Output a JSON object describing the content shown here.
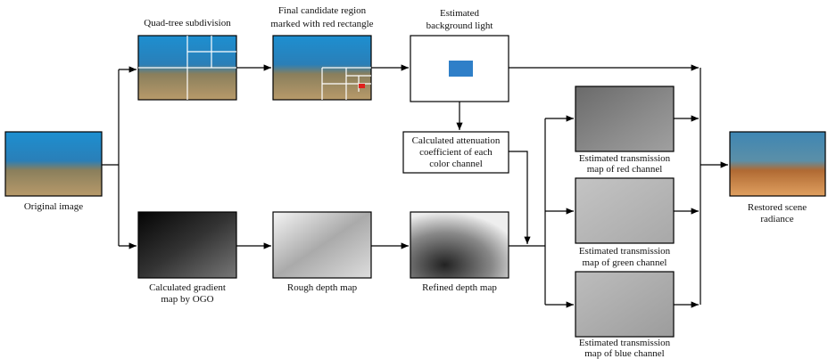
{
  "nodes": [
    {
      "label": [
        "Original image"
      ]
    },
    {
      "label": [
        "Quad-tree subdivision"
      ]
    },
    {
      "label": [
        "Final candidate region",
        "marked with red rectangle"
      ]
    },
    {
      "label": [
        "Estimated",
        "background light"
      ]
    },
    {
      "label": [
        "Calculated attenuation",
        "coefficient of each",
        "color channel"
      ]
    },
    {
      "label": [
        "Calculated gradient",
        "map by OGO"
      ]
    },
    {
      "label": [
        "Rough depth map"
      ]
    },
    {
      "label": [
        "Refined depth map"
      ]
    },
    {
      "label": [
        "Estimated transmission",
        "map of red channel"
      ]
    },
    {
      "label": [
        "Estimated transmission",
        "map of green channel"
      ]
    },
    {
      "label": [
        "Estimated transmission",
        "map of blue channel"
      ]
    },
    {
      "label": [
        "Restored scene",
        "radiance"
      ]
    }
  ]
}
